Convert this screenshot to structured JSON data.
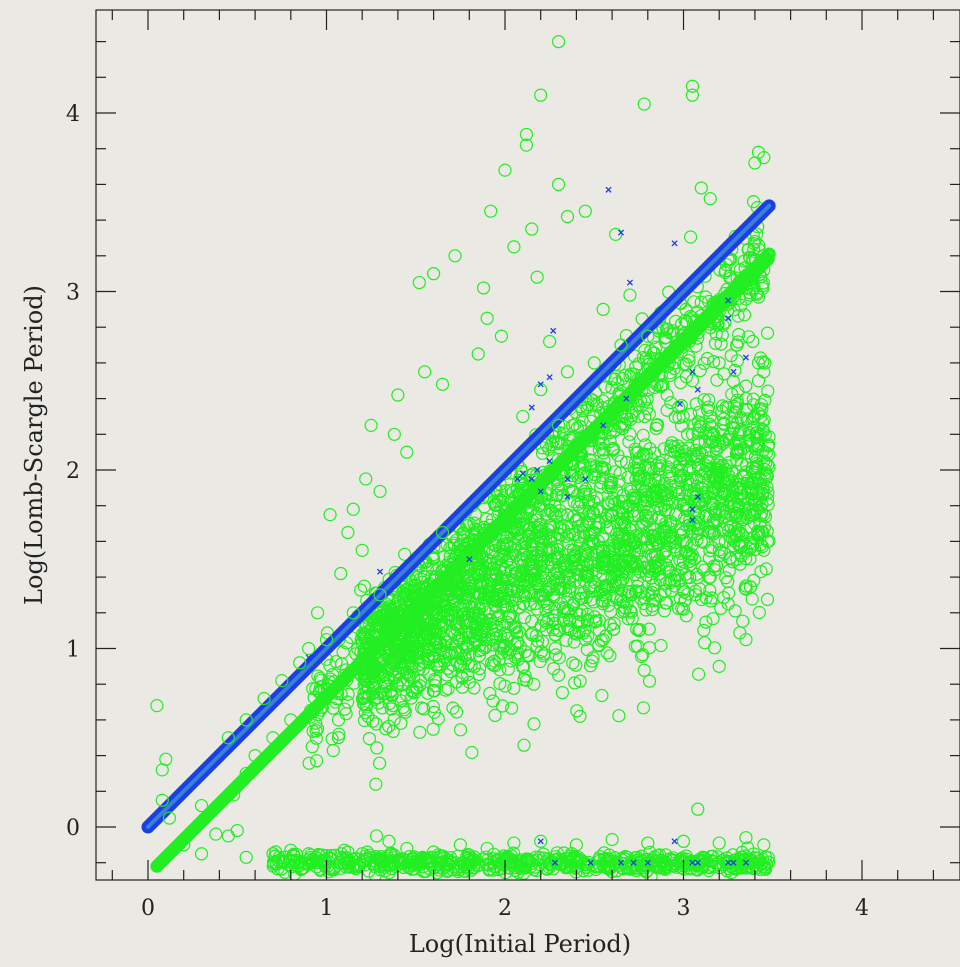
{
  "chart_data": {
    "type": "scatter",
    "title": "",
    "xlabel": "Log(Initial Period)",
    "ylabel": "Log(Lomb-Scargle Period)",
    "xlim": [
      -0.28,
      4.6
    ],
    "ylim": [
      -0.3,
      4.55
    ],
    "grid": false,
    "legend": "none",
    "x_ticks": [
      0,
      1,
      2,
      3,
      4
    ],
    "y_ticks": [
      0,
      1,
      2,
      3,
      4
    ],
    "x_tick_labels": [
      "0",
      "1",
      "2",
      "3",
      "4"
    ],
    "y_tick_labels": [
      "0",
      "1",
      "2",
      "3",
      "4"
    ],
    "colors": {
      "green": "#22ee22",
      "blue": "#1a3fe6",
      "background": "#eae9e3",
      "axis": "#222222"
    },
    "series": [
      {
        "marker": "line",
        "color": "#1a3fe6",
        "x": [
          0,
          3.48
        ],
        "y": [
          0,
          3.48
        ]
      },
      {
        "marker": "line",
        "color": "#22ee22",
        "x": [
          0.05,
          3.48
        ],
        "y": [
          -0.22,
          3.18
        ]
      },
      {
        "marker": "open-circle",
        "color": "#22ee22",
        "points": [
          [
            2.3,
            4.4
          ],
          [
            3.05,
            4.15
          ],
          [
            3.05,
            4.1
          ],
          [
            2.2,
            4.1
          ],
          [
            2.78,
            4.05
          ],
          [
            2.12,
            3.88
          ],
          [
            2.12,
            3.82
          ],
          [
            3.42,
            3.78
          ],
          [
            3.45,
            3.75
          ],
          [
            3.4,
            3.72
          ],
          [
            2.0,
            3.68
          ],
          [
            2.3,
            3.6
          ],
          [
            3.1,
            3.58
          ],
          [
            3.15,
            3.52
          ],
          [
            2.45,
            3.45
          ],
          [
            2.35,
            3.42
          ],
          [
            1.92,
            3.45
          ],
          [
            2.15,
            3.35
          ],
          [
            2.62,
            3.32
          ],
          [
            2.05,
            3.25
          ],
          [
            3.4,
            3.28
          ],
          [
            1.72,
            3.2
          ],
          [
            1.6,
            3.1
          ],
          [
            1.52,
            3.05
          ],
          [
            2.18,
            3.08
          ],
          [
            1.88,
            3.02
          ],
          [
            2.7,
            2.98
          ],
          [
            2.55,
            2.9
          ],
          [
            1.9,
            2.85
          ],
          [
            1.98,
            2.75
          ],
          [
            2.25,
            2.72
          ],
          [
            1.85,
            2.65
          ],
          [
            3.42,
            2.6
          ],
          [
            3.45,
            2.55
          ],
          [
            3.42,
            2.5
          ],
          [
            1.55,
            2.55
          ],
          [
            1.65,
            2.48
          ],
          [
            1.4,
            2.42
          ],
          [
            1.25,
            2.25
          ],
          [
            1.38,
            2.2
          ],
          [
            1.45,
            2.1
          ],
          [
            1.3,
            1.88
          ],
          [
            1.22,
            1.95
          ],
          [
            1.15,
            1.78
          ],
          [
            1.02,
            1.75
          ],
          [
            1.12,
            1.65
          ],
          [
            1.2,
            1.55
          ],
          [
            1.08,
            1.42
          ],
          [
            0.95,
            1.2
          ],
          [
            0.9,
            1.0
          ],
          [
            0.85,
            0.92
          ],
          [
            0.75,
            0.82
          ],
          [
            0.65,
            0.72
          ],
          [
            0.55,
            0.6
          ],
          [
            0.45,
            0.5
          ],
          [
            0.92,
            0.45
          ],
          [
            0.95,
            0.55
          ],
          [
            0.1,
            0.38
          ],
          [
            0.08,
            0.32
          ],
          [
            0.05,
            0.68
          ],
          [
            0.08,
            0.15
          ],
          [
            0.3,
            0.12
          ],
          [
            0.38,
            -0.04
          ],
          [
            0.45,
            -0.05
          ],
          [
            0.5,
            -0.02
          ],
          [
            3.2,
            0.9
          ],
          [
            2.42,
            0.62
          ],
          [
            2.3,
            0.85
          ],
          [
            1.78,
            0.94
          ],
          [
            3.08,
            0.1
          ],
          [
            2.55,
            1.05
          ],
          [
            2.45,
            1.05
          ],
          [
            2.75,
            1.1
          ],
          [
            3.35,
            1.05
          ],
          [
            2.05,
            1.12
          ],
          [
            1.95,
            1.1
          ],
          [
            2.8,
            1.3
          ],
          [
            2.95,
            1.35
          ],
          [
            3.0,
            1.22
          ],
          [
            3.25,
            1.25
          ],
          [
            3.15,
            1.4
          ],
          [
            2.6,
            1.4
          ],
          [
            2.2,
            1.3
          ],
          [
            2.1,
            1.25
          ],
          [
            1.9,
            1.35
          ],
          [
            1.85,
            1.45
          ],
          [
            3.45,
            1.55
          ],
          [
            3.42,
            1.65
          ],
          [
            3.45,
            1.75
          ],
          [
            3.45,
            1.88
          ],
          [
            3.43,
            1.95
          ],
          [
            3.45,
            2.05
          ],
          [
            3.42,
            2.15
          ],
          [
            3.3,
            2.1
          ],
          [
            3.2,
            2.0
          ],
          [
            3.1,
            1.9
          ],
          [
            3.0,
            1.8
          ],
          [
            2.9,
            1.7
          ],
          [
            2.85,
            1.85
          ],
          [
            2.75,
            1.95
          ],
          [
            2.65,
            2.05
          ],
          [
            2.6,
            1.75
          ],
          [
            2.5,
            1.65
          ],
          [
            2.45,
            1.85
          ],
          [
            2.35,
            1.75
          ],
          [
            2.25,
            1.6
          ],
          [
            2.2,
            1.85
          ],
          [
            2.15,
            1.72
          ],
          [
            2.05,
            1.55
          ],
          [
            2.0,
            1.7
          ],
          [
            1.95,
            1.8
          ],
          [
            1.9,
            1.62
          ],
          [
            1.8,
            1.7
          ],
          [
            1.75,
            1.55
          ],
          [
            1.7,
            1.45
          ],
          [
            1.65,
            1.65
          ],
          [
            1.6,
            1.5
          ],
          [
            1.55,
            1.4
          ],
          [
            1.5,
            1.35
          ],
          [
            1.45,
            1.25
          ],
          [
            1.4,
            1.2
          ],
          [
            1.35,
            1.1
          ],
          [
            2.95,
            2.1
          ],
          [
            3.05,
            2.2
          ],
          [
            3.15,
            2.3
          ],
          [
            3.25,
            2.35
          ],
          [
            3.35,
            2.4
          ],
          [
            2.85,
            2.25
          ],
          [
            2.7,
            2.2
          ],
          [
            2.55,
            2.15
          ],
          [
            2.4,
            2.1
          ],
          [
            2.3,
            2.25
          ],
          [
            2.1,
            2.3
          ],
          [
            2.2,
            2.45
          ],
          [
            2.35,
            2.55
          ],
          [
            2.5,
            2.6
          ],
          [
            2.65,
            2.7
          ],
          [
            2.8,
            2.75
          ],
          [
            2.95,
            2.6
          ],
          [
            3.05,
            2.5
          ],
          [
            3.2,
            2.6
          ],
          [
            3.3,
            2.7
          ],
          [
            2.9,
            1.55
          ],
          [
            3.1,
            1.6
          ],
          [
            3.3,
            1.5
          ],
          [
            3.35,
            1.35
          ],
          [
            2.7,
            1.5
          ],
          [
            2.4,
            1.45
          ],
          [
            2.55,
            1.25
          ],
          [
            2.35,
            1.2
          ],
          [
            2.15,
            1.45
          ],
          [
            1.0,
            1.05
          ],
          [
            1.15,
            1.2
          ],
          [
            1.3,
            1.3
          ],
          [
            1.1,
            0.85
          ],
          [
            1.05,
            0.7
          ],
          [
            0.8,
            0.6
          ],
          [
            0.7,
            0.5
          ],
          [
            0.6,
            0.4
          ],
          [
            0.55,
            0.3
          ],
          [
            0.48,
            0.18
          ],
          [
            0.12,
            0.05
          ],
          [
            0.2,
            -0.1
          ],
          [
            0.3,
            -0.15
          ],
          [
            0.55,
            -0.17
          ],
          [
            0.7,
            -0.15
          ],
          [
            0.8,
            -0.13
          ],
          [
            0.9,
            -0.15
          ],
          [
            1.0,
            -0.16
          ],
          [
            1.1,
            -0.13
          ],
          [
            1.2,
            -0.15
          ],
          [
            1.28,
            -0.05
          ],
          [
            1.35,
            -0.08
          ],
          [
            1.45,
            -0.12
          ],
          [
            1.6,
            -0.14
          ],
          [
            1.75,
            -0.1
          ],
          [
            1.9,
            -0.12
          ],
          [
            2.05,
            -0.09
          ],
          [
            2.2,
            -0.08
          ],
          [
            2.4,
            -0.1
          ],
          [
            2.6,
            -0.07
          ],
          [
            2.8,
            -0.09
          ],
          [
            3.0,
            -0.08
          ],
          [
            3.2,
            -0.09
          ],
          [
            3.35,
            -0.06
          ],
          [
            3.45,
            -0.1
          ]
        ]
      },
      {
        "marker": "x",
        "color": "#1a3fe6",
        "points": [
          [
            2.58,
            3.57
          ],
          [
            2.65,
            3.33
          ],
          [
            2.95,
            3.27
          ],
          [
            2.7,
            3.05
          ],
          [
            3.25,
            2.95
          ],
          [
            3.25,
            2.85
          ],
          [
            2.27,
            2.78
          ],
          [
            3.35,
            2.63
          ],
          [
            3.05,
            2.55
          ],
          [
            3.28,
            2.55
          ],
          [
            2.25,
            2.52
          ],
          [
            2.2,
            2.48
          ],
          [
            3.08,
            2.45
          ],
          [
            2.68,
            2.4
          ],
          [
            2.98,
            2.37
          ],
          [
            2.15,
            2.35
          ],
          [
            2.55,
            2.25
          ],
          [
            2.25,
            2.05
          ],
          [
            2.18,
            2.0
          ],
          [
            2.1,
            1.98
          ],
          [
            2.15,
            1.95
          ],
          [
            2.35,
            1.95
          ],
          [
            2.45,
            1.95
          ],
          [
            2.07,
            1.95
          ],
          [
            2.2,
            1.88
          ],
          [
            2.35,
            1.85
          ],
          [
            3.08,
            1.85
          ],
          [
            3.05,
            1.78
          ],
          [
            3.05,
            1.72
          ],
          [
            1.8,
            1.5
          ],
          [
            1.3,
            1.43
          ],
          [
            0.9,
            0.95
          ],
          [
            2.2,
            -0.08
          ],
          [
            2.95,
            -0.08
          ],
          [
            2.28,
            -0.2
          ],
          [
            2.48,
            -0.2
          ],
          [
            2.65,
            -0.2
          ],
          [
            2.72,
            -0.2
          ],
          [
            2.8,
            -0.2
          ],
          [
            3.05,
            -0.2
          ],
          [
            3.08,
            -0.2
          ],
          [
            3.25,
            -0.2
          ],
          [
            3.28,
            -0.2
          ],
          [
            3.35,
            -0.2
          ]
        ]
      }
    ]
  }
}
